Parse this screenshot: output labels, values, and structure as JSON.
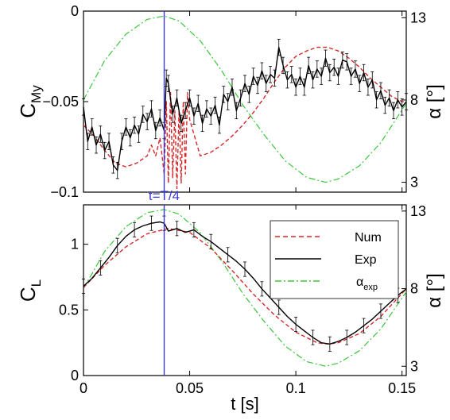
{
  "figure": {
    "marker_label": "t=T/4",
    "xlabel": "t [s]"
  },
  "chart_data": [
    {
      "type": "line",
      "panel": "top",
      "ylabel_main": "C",
      "ylabel_sub": "My",
      "ylabel_right": "α [°]",
      "xlim": [
        0,
        0.152
      ],
      "ylim": [
        -0.1,
        0
      ],
      "yticks": [
        "0",
        "−0.05",
        "−0.1"
      ],
      "ytick_values": [
        0,
        -0.05,
        -0.1
      ],
      "ylim_right": [
        2.4,
        13.4
      ],
      "yticks_right": [
        "13",
        "8",
        "3"
      ],
      "ytick_values_right": [
        13,
        8,
        3
      ],
      "vline_x": 0.038,
      "colors": {
        "num": "#d62728",
        "exp": "#000000",
        "alpha": "#3cc63c",
        "vline": "#3a3ad0"
      },
      "series": [
        {
          "key": "num",
          "x": [
            0,
            0.005,
            0.01,
            0.015,
            0.02,
            0.025,
            0.03,
            0.032,
            0.034,
            0.036,
            0.038,
            0.039,
            0.04,
            0.041,
            0.042,
            0.043,
            0.044,
            0.045,
            0.046,
            0.047,
            0.048,
            0.049,
            0.05,
            0.055,
            0.06,
            0.065,
            0.07,
            0.075,
            0.08,
            0.085,
            0.09,
            0.095,
            0.1,
            0.105,
            0.11,
            0.115,
            0.12,
            0.125,
            0.13,
            0.135,
            0.14,
            0.145,
            0.15,
            0.152
          ],
          "y": [
            -0.063,
            -0.069,
            -0.077,
            -0.084,
            -0.086,
            -0.084,
            -0.08,
            -0.074,
            -0.08,
            -0.07,
            -0.09,
            -0.05,
            -0.095,
            -0.045,
            -0.092,
            -0.055,
            -0.098,
            -0.055,
            -0.095,
            -0.05,
            -0.09,
            -0.045,
            -0.06,
            -0.08,
            -0.078,
            -0.074,
            -0.069,
            -0.063,
            -0.056,
            -0.048,
            -0.039,
            -0.031,
            -0.025,
            -0.022,
            -0.02,
            -0.02,
            -0.022,
            -0.026,
            -0.031,
            -0.037,
            -0.042,
            -0.047,
            -0.05,
            -0.05
          ]
        },
        {
          "key": "exp",
          "x": [
            0,
            0.002,
            0.004,
            0.006,
            0.008,
            0.01,
            0.012,
            0.014,
            0.016,
            0.018,
            0.02,
            0.022,
            0.024,
            0.026,
            0.028,
            0.03,
            0.032,
            0.034,
            0.036,
            0.038,
            0.039,
            0.04,
            0.042,
            0.044,
            0.046,
            0.048,
            0.05,
            0.052,
            0.054,
            0.056,
            0.058,
            0.06,
            0.062,
            0.064,
            0.066,
            0.068,
            0.07,
            0.072,
            0.074,
            0.076,
            0.078,
            0.08,
            0.082,
            0.084,
            0.086,
            0.088,
            0.09,
            0.092,
            0.094,
            0.096,
            0.098,
            0.1,
            0.102,
            0.104,
            0.106,
            0.108,
            0.11,
            0.112,
            0.114,
            0.116,
            0.118,
            0.12,
            0.122,
            0.124,
            0.126,
            0.128,
            0.13,
            0.132,
            0.134,
            0.136,
            0.138,
            0.14,
            0.142,
            0.144,
            0.146,
            0.148,
            0.15,
            0.152
          ],
          "y": [
            -0.053,
            -0.072,
            -0.064,
            -0.074,
            -0.068,
            -0.077,
            -0.072,
            -0.085,
            -0.088,
            -0.072,
            -0.064,
            -0.07,
            -0.063,
            -0.068,
            -0.057,
            -0.061,
            -0.054,
            -0.066,
            -0.059,
            -0.066,
            -0.037,
            -0.04,
            -0.057,
            -0.048,
            -0.062,
            -0.055,
            -0.048,
            -0.058,
            -0.051,
            -0.062,
            -0.054,
            -0.058,
            -0.052,
            -0.063,
            -0.046,
            -0.05,
            -0.042,
            -0.055,
            -0.048,
            -0.04,
            -0.046,
            -0.036,
            -0.041,
            -0.033,
            -0.04,
            -0.035,
            -0.037,
            -0.02,
            -0.03,
            -0.038,
            -0.035,
            -0.042,
            -0.036,
            -0.042,
            -0.03,
            -0.038,
            -0.032,
            -0.036,
            -0.026,
            -0.034,
            -0.031,
            -0.036,
            -0.027,
            -0.028,
            -0.036,
            -0.032,
            -0.04,
            -0.034,
            -0.042,
            -0.038,
            -0.049,
            -0.044,
            -0.052,
            -0.048,
            -0.055,
            -0.049,
            -0.053,
            -0.05
          ]
        },
        {
          "key": "alpha",
          "axis": "right",
          "x": [
            0,
            0.01,
            0.02,
            0.03,
            0.038,
            0.045,
            0.055,
            0.065,
            0.075,
            0.085,
            0.095,
            0.105,
            0.114,
            0.12,
            0.13,
            0.14,
            0.152
          ],
          "y": [
            8,
            10.4,
            12,
            12.9,
            13.1,
            12.8,
            11.6,
            9.8,
            7.7,
            5.9,
            4.3,
            3.3,
            3,
            3.2,
            4,
            5.4,
            7.8
          ]
        }
      ]
    },
    {
      "type": "line",
      "panel": "bottom",
      "ylabel_main": "C",
      "ylabel_sub": "L",
      "ylabel_right": "α [°]",
      "xlim": [
        0,
        0.152
      ],
      "ylim": [
        0,
        1.3
      ],
      "yticks": [
        "1",
        "0.5",
        "0"
      ],
      "ytick_values": [
        1,
        0.5,
        0
      ],
      "ylim_right": [
        2.4,
        13.4
      ],
      "yticks_right": [
        "13",
        "8",
        "3"
      ],
      "ytick_values_right": [
        13,
        8,
        3
      ],
      "xticks": [
        "0",
        "0.05",
        "0.1",
        "0.15"
      ],
      "xtick_values": [
        0,
        0.05,
        0.1,
        0.15
      ],
      "vline_x": 0.038,
      "legend": {
        "position": "top-right",
        "num": "Num",
        "exp": "Exp",
        "alpha_main": "α",
        "alpha_sub": "exp"
      },
      "series": [
        {
          "key": "num",
          "x": [
            0,
            0.01,
            0.02,
            0.03,
            0.04,
            0.05,
            0.06,
            0.07,
            0.08,
            0.09,
            0.1,
            0.11,
            0.115,
            0.12,
            0.13,
            0.14,
            0.152
          ],
          "y": [
            0.67,
            0.84,
            0.98,
            1.08,
            1.12,
            1.09,
            0.97,
            0.8,
            0.62,
            0.46,
            0.33,
            0.25,
            0.24,
            0.25,
            0.32,
            0.45,
            0.66
          ]
        },
        {
          "key": "exp",
          "x": [
            0,
            0.004,
            0.008,
            0.012,
            0.016,
            0.02,
            0.024,
            0.028,
            0.032,
            0.036,
            0.038,
            0.04,
            0.044,
            0.048,
            0.052,
            0.056,
            0.06,
            0.064,
            0.068,
            0.072,
            0.076,
            0.08,
            0.084,
            0.088,
            0.092,
            0.096,
            0.1,
            0.104,
            0.108,
            0.112,
            0.116,
            0.12,
            0.124,
            0.128,
            0.132,
            0.136,
            0.14,
            0.144,
            0.148,
            0.152
          ],
          "y": [
            0.68,
            0.74,
            0.82,
            0.9,
            0.99,
            1.06,
            1.11,
            1.14,
            1.16,
            1.17,
            1.16,
            1.1,
            1.12,
            1.09,
            1.11,
            1.06,
            1.02,
            0.97,
            0.92,
            0.87,
            0.81,
            0.74,
            0.66,
            0.59,
            0.52,
            0.45,
            0.39,
            0.34,
            0.29,
            0.25,
            0.24,
            0.26,
            0.29,
            0.33,
            0.38,
            0.43,
            0.49,
            0.55,
            0.61,
            0.66
          ]
        },
        {
          "key": "alpha",
          "axis": "right",
          "x": [
            0,
            0.01,
            0.02,
            0.03,
            0.038,
            0.045,
            0.055,
            0.065,
            0.075,
            0.085,
            0.095,
            0.105,
            0.114,
            0.12,
            0.13,
            0.14,
            0.152
          ],
          "y": [
            8,
            10.4,
            12,
            12.9,
            13.1,
            12.8,
            11.6,
            9.8,
            7.7,
            5.9,
            4.3,
            3.3,
            3,
            3.2,
            4,
            5.4,
            7.8
          ]
        }
      ]
    }
  ]
}
